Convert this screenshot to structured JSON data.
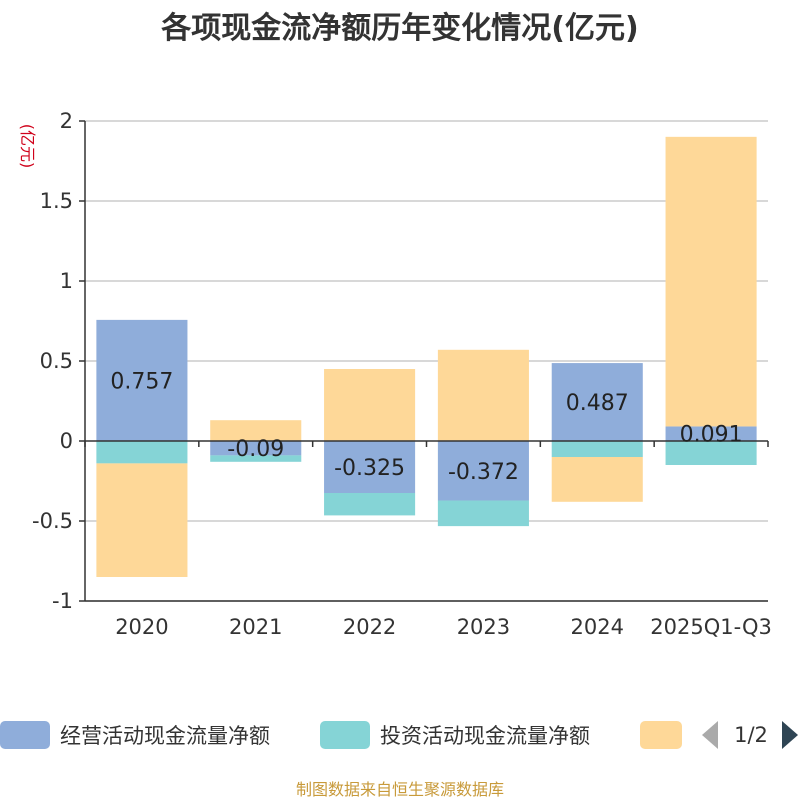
{
  "chart_data": {
    "type": "bar",
    "stacked": true,
    "title": "各项现金流净额历年变化情况(亿元)",
    "ylabel": "(亿元)",
    "categories": [
      "2020",
      "2021",
      "2022",
      "2023",
      "2024",
      "2025Q1-Q3"
    ],
    "ylim": [
      -1,
      2
    ],
    "yticks": [
      2,
      1.5,
      1,
      0.5,
      0,
      -0.5,
      -1
    ],
    "grid": true,
    "series": [
      {
        "name": "经营活动现金流量净额",
        "color": "#8fadda",
        "values": [
          0.757,
          -0.09,
          -0.325,
          -0.372,
          0.487,
          0.091
        ],
        "labels": [
          "0.757",
          "-0.09",
          "-0.325",
          "-0.372",
          "0.487",
          "0.091"
        ]
      },
      {
        "name": "投资活动现金流量净额",
        "color": "#85d4d6",
        "values": [
          -0.14,
          -0.04,
          -0.14,
          -0.16,
          -0.1,
          -0.15
        ]
      },
      {
        "name": "",
        "color": "#fed898",
        "values": [
          -0.71,
          0.13,
          0.45,
          0.57,
          -0.28,
          1.81
        ]
      }
    ],
    "legend": {
      "position": "bottom",
      "page_indicator": "1/2"
    },
    "source_note": "制图数据来自恒生聚源数据库"
  }
}
